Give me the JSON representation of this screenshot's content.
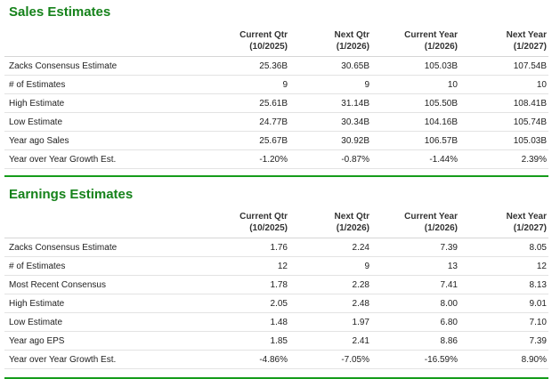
{
  "sales": {
    "title": "Sales Estimates",
    "headers": [
      {
        "line1": "",
        "line2": ""
      },
      {
        "line1": "Current Qtr",
        "line2": "(10/2025)"
      },
      {
        "line1": "Next Qtr",
        "line2": "(1/2026)"
      },
      {
        "line1": "Current Year",
        "line2": "(1/2026)"
      },
      {
        "line1": "Next Year",
        "line2": "(1/2027)"
      }
    ],
    "rows": [
      {
        "label": "Zacks Consensus Estimate",
        "values": [
          "25.36B",
          "30.65B",
          "105.03B",
          "107.54B"
        ]
      },
      {
        "label": "# of Estimates",
        "values": [
          "9",
          "9",
          "10",
          "10"
        ]
      },
      {
        "label": "High Estimate",
        "values": [
          "25.61B",
          "31.14B",
          "105.50B",
          "108.41B"
        ]
      },
      {
        "label": "Low Estimate",
        "values": [
          "24.77B",
          "30.34B",
          "104.16B",
          "105.74B"
        ]
      },
      {
        "label": "Year ago Sales",
        "values": [
          "25.67B",
          "30.92B",
          "106.57B",
          "105.03B"
        ]
      },
      {
        "label": "Year over Year Growth Est.",
        "values": [
          "-1.20%",
          "-0.87%",
          "-1.44%",
          "2.39%"
        ]
      }
    ]
  },
  "earnings": {
    "title": "Earnings Estimates",
    "headers": [
      {
        "line1": "",
        "line2": ""
      },
      {
        "line1": "Current Qtr",
        "line2": "(10/2025)"
      },
      {
        "line1": "Next Qtr",
        "line2": "(1/2026)"
      },
      {
        "line1": "Current Year",
        "line2": "(1/2026)"
      },
      {
        "line1": "Next Year",
        "line2": "(1/2027)"
      }
    ],
    "rows": [
      {
        "label": "Zacks Consensus Estimate",
        "values": [
          "1.76",
          "2.24",
          "7.39",
          "8.05"
        ]
      },
      {
        "label": "# of Estimates",
        "values": [
          "12",
          "9",
          "13",
          "12"
        ]
      },
      {
        "label": "Most Recent Consensus",
        "values": [
          "1.78",
          "2.28",
          "7.41",
          "8.13"
        ]
      },
      {
        "label": "High Estimate",
        "values": [
          "2.05",
          "2.48",
          "8.00",
          "9.01"
        ]
      },
      {
        "label": "Low Estimate",
        "values": [
          "1.48",
          "1.97",
          "6.80",
          "7.10"
        ]
      },
      {
        "label": "Year ago EPS",
        "values": [
          "1.85",
          "2.41",
          "8.86",
          "7.39"
        ]
      },
      {
        "label": "Year over Year Growth Est.",
        "values": [
          "-4.86%",
          "-7.05%",
          "-16.59%",
          "8.90%"
        ]
      }
    ]
  },
  "colors": {
    "title": "#15821a",
    "rule": "#159c1b"
  }
}
